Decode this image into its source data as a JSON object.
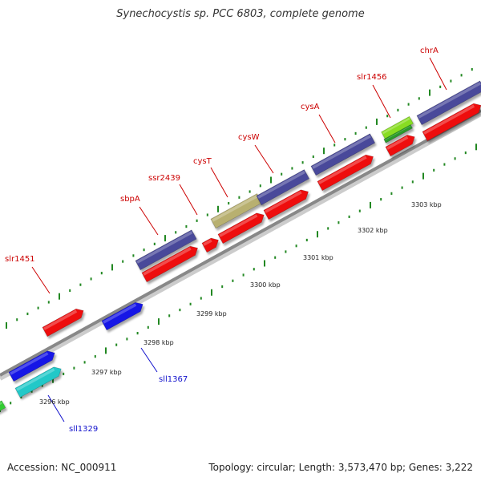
{
  "title": "Synechocystis sp. PCC 6803, complete genome",
  "footer": {
    "accession": "Accession: NC_000911",
    "topology": "Topology: circular; Length: 3,573,470 bp; Genes: 3,222"
  },
  "colors": {
    "red": "#ee1111",
    "slate": "#4a4a9a",
    "khaki": "#b8b070",
    "blue": "#1414e6",
    "cyan": "#20c8c8",
    "lime": "#88dd22",
    "green": "#2a9a2a",
    "label_red": "#cc0000",
    "label_blue": "#1010cc",
    "tick": "#228822"
  },
  "kbp_labels": [
    "3296 kbp",
    "3297 kbp",
    "3298 kbp",
    "3299 kbp",
    "3300 kbp",
    "3301 kbp",
    "3302 kbp",
    "3303 kbp"
  ],
  "gene_labels_top": [
    "slr1451",
    "sbpA",
    "ssr2439",
    "cysT",
    "cysW",
    "cysA",
    "slr1456",
    "chrA"
  ],
  "gene_labels_bottom": [
    "sll1329",
    "sll1367"
  ]
}
